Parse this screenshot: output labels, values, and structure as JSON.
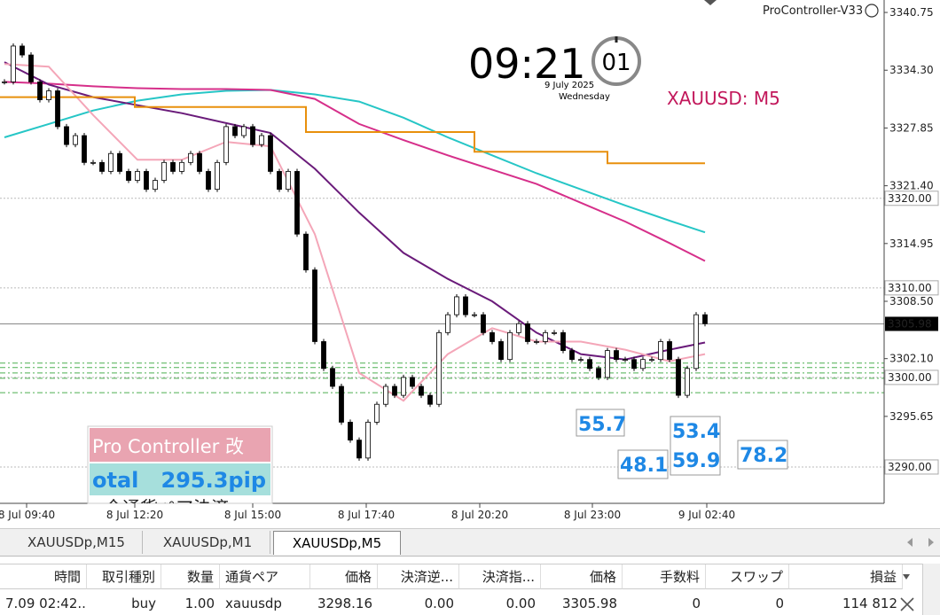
{
  "header": {
    "indicator": "ProController-V33"
  },
  "clock": {
    "time": "09:21",
    "seconds": "01",
    "date": "9 July 2025",
    "weekday": "Wednesday"
  },
  "symbol": "XAUUSD: M5",
  "chart_data": {
    "type": "candlestick",
    "closes": [
      3333,
      3337,
      3336,
      3333,
      3331,
      3332,
      3328,
      3326,
      3327,
      3324,
      3324,
      3323,
      3325,
      3323,
      3322,
      3323,
      3321,
      3322,
      3324,
      3323,
      3324,
      3325,
      3323,
      3321,
      3324,
      3328,
      3327,
      3328,
      3326,
      3327,
      3323,
      3321,
      3323,
      3316,
      3312,
      3304,
      3301,
      3299,
      3295,
      3293,
      3291,
      3295,
      3297,
      3299,
      3298,
      3300,
      3299,
      3298,
      3297,
      3305,
      3307,
      3309,
      3307,
      3307,
      3305,
      3304,
      3302,
      3305,
      3306,
      3304,
      3304,
      3305,
      3305,
      3303,
      3302,
      3302,
      3301,
      3300,
      3303,
      3302,
      3302,
      3301,
      3302,
      3302,
      3304,
      3302,
      3298,
      3301,
      3307,
      3306
    ],
    "xlim": [
      -0.5,
      99.2
    ],
    "ylim": [
      3285.94,
      3342.14
    ],
    "xticks": [
      {
        "value": 2.5,
        "label": "8 Jul 09:40"
      },
      {
        "value": 14.7,
        "label": "8 Jul 12:20"
      },
      {
        "value": 28,
        "label": "8 Jul 15:00"
      },
      {
        "value": 40.8,
        "label": "8 Jul 17:40"
      },
      {
        "value": 53.6,
        "label": "8 Jul 20:20"
      },
      {
        "value": 66.3,
        "label": "8 Jul 23:00"
      },
      {
        "value": 79.2,
        "label": "9 Jul 02:40"
      }
    ],
    "yticks": [
      3340.75,
      {
        "value": 3334.3,
        "label": "3334.30"
      },
      3327.85,
      {
        "value": 3321.4,
        "label": "3321.40"
      },
      3314.95,
      {
        "value": 3308.5,
        "label": "3308.50"
      },
      {
        "value": 3302.1,
        "label": "3302.10"
      },
      3295.65
    ],
    "series": [
      {
        "color": "#26c6c6",
        "x": [
          0,
          5,
          10,
          15,
          20,
          25,
          30,
          35,
          40,
          45,
          50,
          55,
          60,
          65,
          70,
          75,
          79
        ],
        "values": [
          3326.8,
          3328.3,
          3329.8,
          3330.9,
          3331.6,
          3332.0,
          3332.1,
          3331.6,
          3330.8,
          3329.0,
          3326.8,
          3324.8,
          3322.8,
          3321.0,
          3319.2,
          3317.5,
          3316.2
        ]
      },
      {
        "color": "#d62f8a",
        "x": [
          0,
          5,
          10,
          15,
          20,
          25,
          30,
          35,
          40,
          45,
          50,
          55,
          60,
          65,
          70,
          75,
          79
        ],
        "values": [
          3333.0,
          3332.8,
          3332.5,
          3332.3,
          3332.2,
          3332.2,
          3332.1,
          3331.1,
          3328.3,
          3326.5,
          3324.8,
          3323.2,
          3321.6,
          3319.5,
          3317.4,
          3315.0,
          3313.0
        ]
      },
      {
        "color": "#6a1b7a",
        "x": [
          0,
          5,
          10,
          15,
          20,
          25,
          30,
          35,
          40,
          45,
          50,
          55,
          60,
          65,
          70,
          75,
          79
        ],
        "values": [
          3335.2,
          3332.7,
          3331.3,
          3330.4,
          3329.5,
          3328.4,
          3327.3,
          3323.3,
          3318.4,
          3313.9,
          3311.0,
          3308.5,
          3305.0,
          3302.6,
          3302.0,
          3303.1,
          3303.9
        ]
      },
      {
        "color": "#f4a6b8",
        "x": [
          0,
          5,
          10,
          15,
          20,
          25,
          30,
          35,
          40,
          45,
          50,
          55,
          60,
          65,
          70,
          75,
          79
        ],
        "values": [
          3335.0,
          3334.7,
          3329.3,
          3324.3,
          3324.3,
          3326.3,
          3325.8,
          3316.0,
          3300.5,
          3297.4,
          3302.6,
          3305.5,
          3304.0,
          3304.0,
          3303.1,
          3301.8,
          3302.6
        ]
      },
      {
        "color": "#e8900c",
        "x": [
          -0.5,
          14.7,
          14.7,
          34,
          34,
          53,
          53,
          68,
          68,
          79
        ],
        "values": [
          3331.3,
          3331.3,
          3330.2,
          3330.2,
          3327.4,
          3327.4,
          3325.2,
          3325.2,
          3323.9,
          3323.9
        ]
      }
    ],
    "levels": [
      {
        "value": 3320,
        "label": "3320.00"
      },
      {
        "value": 3310,
        "label": "3310.00"
      },
      {
        "value": 3300,
        "label": "3300.00"
      },
      {
        "value": 3290,
        "label": "3290.00"
      }
    ],
    "dashed_levels": [
      3301.6,
      3301.1,
      3300.5,
      3299.9,
      3298.3
    ],
    "price": 3305.98
  },
  "signal_boxes": [
    [
      "55.7"
    ],
    [
      "53.4",
      "59.9"
    ],
    [
      "48.1"
    ],
    [
      "78.2"
    ]
  ],
  "panel": {
    "title": "Pro Controller 改",
    "total_label": "otal",
    "total_value": "295.3pip",
    "button": "全通貨ペア決済"
  },
  "tabs": [
    "XAUUSDp,M15",
    "XAUUSDp,M1",
    "XAUUSDp,M5"
  ],
  "table": {
    "headers": [
      "時間",
      "取引種別",
      "数量",
      "通貨ペア",
      "価格",
      "決済逆...",
      "決済指...",
      "価格",
      "手数料",
      "スワップ",
      "損益"
    ],
    "rows": [
      [
        "7.09 02:42...",
        "buy",
        "1.00",
        "xauusdp",
        "3298.16",
        "0.00",
        "0.00",
        "3305.98",
        "0",
        "0",
        "114 812"
      ]
    ]
  }
}
